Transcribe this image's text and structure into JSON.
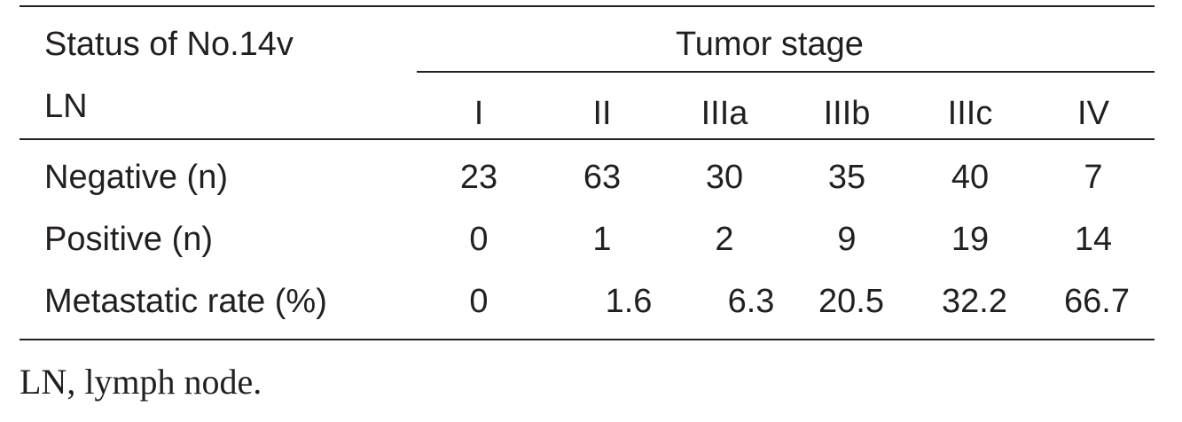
{
  "table": {
    "header": {
      "row_label_line1": "Status of No.14v",
      "row_label_line2": "LN",
      "group_label": "Tumor stage",
      "columns": [
        "I",
        "II",
        "IIIa",
        "IIIb",
        "IIIc",
        "IV"
      ]
    },
    "rows": [
      {
        "label": "Negative (n)",
        "values": [
          "23",
          "63",
          "30",
          "35",
          "40",
          "7"
        ]
      },
      {
        "label": "Positive (n)",
        "values": [
          "0",
          "1",
          "2",
          "9",
          "19",
          "14"
        ]
      },
      {
        "label": "Metastatic rate (%)",
        "values": [
          "0",
          "1.6",
          "6.3",
          "20.5",
          "32.2",
          "66.7"
        ]
      }
    ]
  },
  "footnote": "LN, lymph node."
}
